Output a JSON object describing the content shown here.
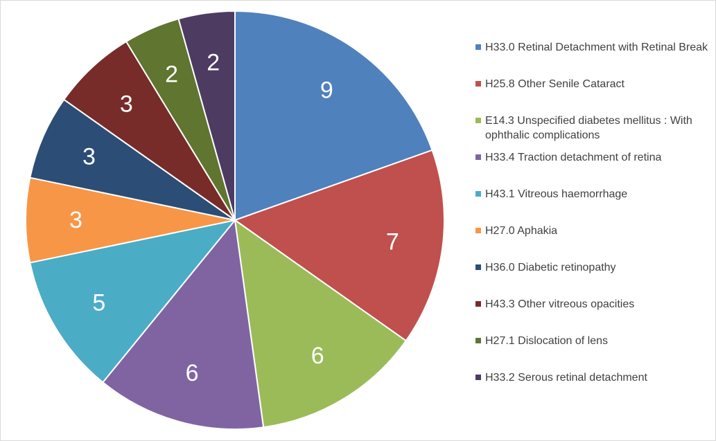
{
  "chart_data": {
    "type": "pie",
    "title": "",
    "legend_position": "right",
    "slices": [
      {
        "label": "H33.0 Retinal Detachment with Retinal Break",
        "value": 9,
        "color": "#4f81bd"
      },
      {
        "label": "H25.8 Other Senile Cataract",
        "value": 7,
        "color": "#c0504d"
      },
      {
        "label": "E14.3 Unspecified diabetes mellitus : With ophthalic complications",
        "value": 6,
        "color": "#9bbb59"
      },
      {
        "label": "H33.4 Traction detachment of retina",
        "value": 6,
        "color": "#8064a2"
      },
      {
        "label": "H43.1 Vitreous haemorrhage",
        "value": 5,
        "color": "#4bacc6"
      },
      {
        "label": "H27.0 Aphakia",
        "value": 3,
        "color": "#f79646"
      },
      {
        "label": "H36.0 Diabetic retinopathy",
        "value": 3,
        "color": "#2c4d75"
      },
      {
        "label": "H43.3 Other vitreous opacities",
        "value": 3,
        "color": "#772c2a"
      },
      {
        "label": "H27.1 Dislocation of lens",
        "value": 2,
        "color": "#5f7530"
      },
      {
        "label": "H33.2 Serous retinal detachment",
        "value": 2,
        "color": "#4d3b62"
      }
    ]
  }
}
